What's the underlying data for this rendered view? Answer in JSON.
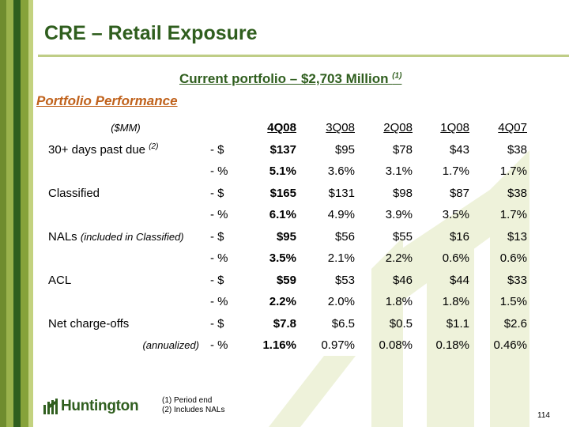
{
  "title": "CRE – Retail Exposure",
  "subtitle": {
    "text": "Current portfolio  – $2,703 Million ",
    "note": "(1)"
  },
  "section_heading": "Portfolio Performance",
  "table": {
    "units_label": "($MM)",
    "columns": [
      "4Q08",
      "3Q08",
      "2Q08",
      "1Q08",
      "4Q07"
    ],
    "rows": [
      {
        "label": "30+ days past due ",
        "label_note": "(2)",
        "unit": "- $",
        "values": [
          "$137",
          "$95",
          "$78",
          "$43",
          "$38"
        ]
      },
      {
        "label": "",
        "unit": "- %",
        "values": [
          "5.1%",
          "3.6%",
          "3.1%",
          "1.7%",
          "1.7%"
        ]
      },
      {
        "label": "Classified",
        "unit": "- $",
        "values": [
          "$165",
          "$131",
          "$98",
          "$87",
          "$38"
        ]
      },
      {
        "label": "",
        "unit": "- %",
        "values": [
          "6.1%",
          "4.9%",
          "3.9%",
          "3.5%",
          "1.7%"
        ]
      },
      {
        "label": "NALs ",
        "label_note": "(included in Classified)",
        "unit": "- $",
        "values": [
          "$95",
          "$56",
          "$55",
          "$16",
          "$13"
        ]
      },
      {
        "label": "",
        "unit": "- %",
        "values": [
          "3.5%",
          "2.1%",
          "2.2%",
          "0.6%",
          "0.6%"
        ]
      },
      {
        "label": "ACL",
        "unit": "- $",
        "values": [
          "$59",
          "$53",
          "$46",
          "$44",
          "$33"
        ]
      },
      {
        "label": "",
        "unit": "- %",
        "values": [
          "2.2%",
          "2.0%",
          "1.8%",
          "1.8%",
          "1.5%"
        ]
      },
      {
        "label": "Net charge-offs",
        "unit": "- $",
        "values": [
          "$7.8",
          "$6.5",
          "$0.5",
          "$1.1",
          "$2.6"
        ]
      },
      {
        "label": "(annualized)",
        "unit": "- %",
        "values": [
          "1.16%",
          "0.97%",
          "0.08%",
          "0.18%",
          "0.46%"
        ]
      }
    ]
  },
  "footnotes": [
    "(1)  Period end",
    "(2)  Includes NALs"
  ],
  "logo_text": "Huntington",
  "page_number": "114",
  "colors": {
    "brand_green": "#2f5e1e",
    "section_orange": "#c0621c",
    "stripe_light": "#9ab24c",
    "watermark": "#eef2da"
  }
}
